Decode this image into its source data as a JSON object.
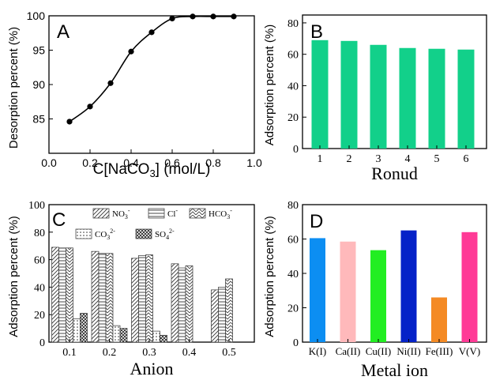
{
  "chart_data": [
    {
      "panel": "A",
      "type": "line",
      "xlabel_main": "C[NaCO",
      "xlabel_sub": "3",
      "xlabel_tail": "] (mol/L)",
      "ylabel": "Desorption percent (%)",
      "xlim": [
        0.0,
        1.0
      ],
      "ylim": [
        80,
        100
      ],
      "xticks": [
        "0.0",
        "0.2",
        "0.4",
        "0.6",
        "0.8",
        "1.0"
      ],
      "yticks": [
        "85",
        "90",
        "95",
        "100"
      ],
      "x": [
        0.1,
        0.2,
        0.3,
        0.4,
        0.5,
        0.6,
        0.7,
        0.8,
        0.9
      ],
      "y": [
        84.6,
        86.8,
        90.2,
        94.8,
        97.6,
        99.6,
        99.9,
        99.9,
        99.9
      ]
    },
    {
      "panel": "B",
      "type": "bar",
      "xlabel": "Ronud",
      "ylabel": "Adsorption percent (%)",
      "categories": [
        "1",
        "2",
        "3",
        "4",
        "5",
        "6"
      ],
      "values": [
        69,
        68.5,
        66,
        64,
        63.5,
        63
      ],
      "ylim": [
        0,
        85
      ],
      "yticks": [
        "0",
        "20",
        "40",
        "60",
        "80"
      ],
      "color": "#12d08a"
    },
    {
      "panel": "C",
      "type": "bar",
      "xlabel": "Anion",
      "ylabel": "Adsorption percent (%)",
      "categories": [
        "0.1",
        "0.2",
        "0.3",
        "0.4",
        "0.5"
      ],
      "ylim": [
        0,
        100
      ],
      "yticks": [
        "0",
        "20",
        "40",
        "60",
        "80",
        "100"
      ],
      "series": [
        {
          "label_main": "NO",
          "label_sub": "3",
          "label_sup": "-",
          "pattern": "diag",
          "values": [
            69,
            66,
            61,
            57,
            38
          ]
        },
        {
          "label_main": "Cl",
          "label_sub": "",
          "label_sup": "-",
          "pattern": "horiz",
          "values": [
            68.5,
            64.5,
            63,
            54,
            40
          ]
        },
        {
          "label_main": "HCO",
          "label_sub": "3",
          "label_sup": "-",
          "pattern": "zigzag",
          "values": [
            68.5,
            64.5,
            63.5,
            55.5,
            46
          ]
        },
        {
          "label_main": "CO",
          "label_sub": "3",
          "label_sup": "2-",
          "pattern": "dots",
          "values": [
            17,
            12,
            8,
            null,
            null
          ]
        },
        {
          "label_main": "SO",
          "label_sub": "4",
          "label_sup": "2-",
          "pattern": "cross",
          "values": [
            21,
            10,
            5,
            null,
            null
          ]
        }
      ]
    },
    {
      "panel": "D",
      "type": "bar",
      "xlabel": "Metal ion",
      "ylabel": "Adsorption percent (%)",
      "categories": [
        "K(I)",
        "Ca(II)",
        "Cu(II)",
        "Ni(II)",
        "Fe(III)",
        "V(V)"
      ],
      "values": [
        60.5,
        58.5,
        53.5,
        65,
        26,
        64
      ],
      "colors": [
        "#0c8ef2",
        "#ffb9bb",
        "#22ee22",
        "#0522c8",
        "#f48a24",
        "#ff3a96"
      ],
      "ylim": [
        0,
        80
      ],
      "yticks": [
        "0",
        "20",
        "40",
        "60",
        "80"
      ]
    }
  ]
}
